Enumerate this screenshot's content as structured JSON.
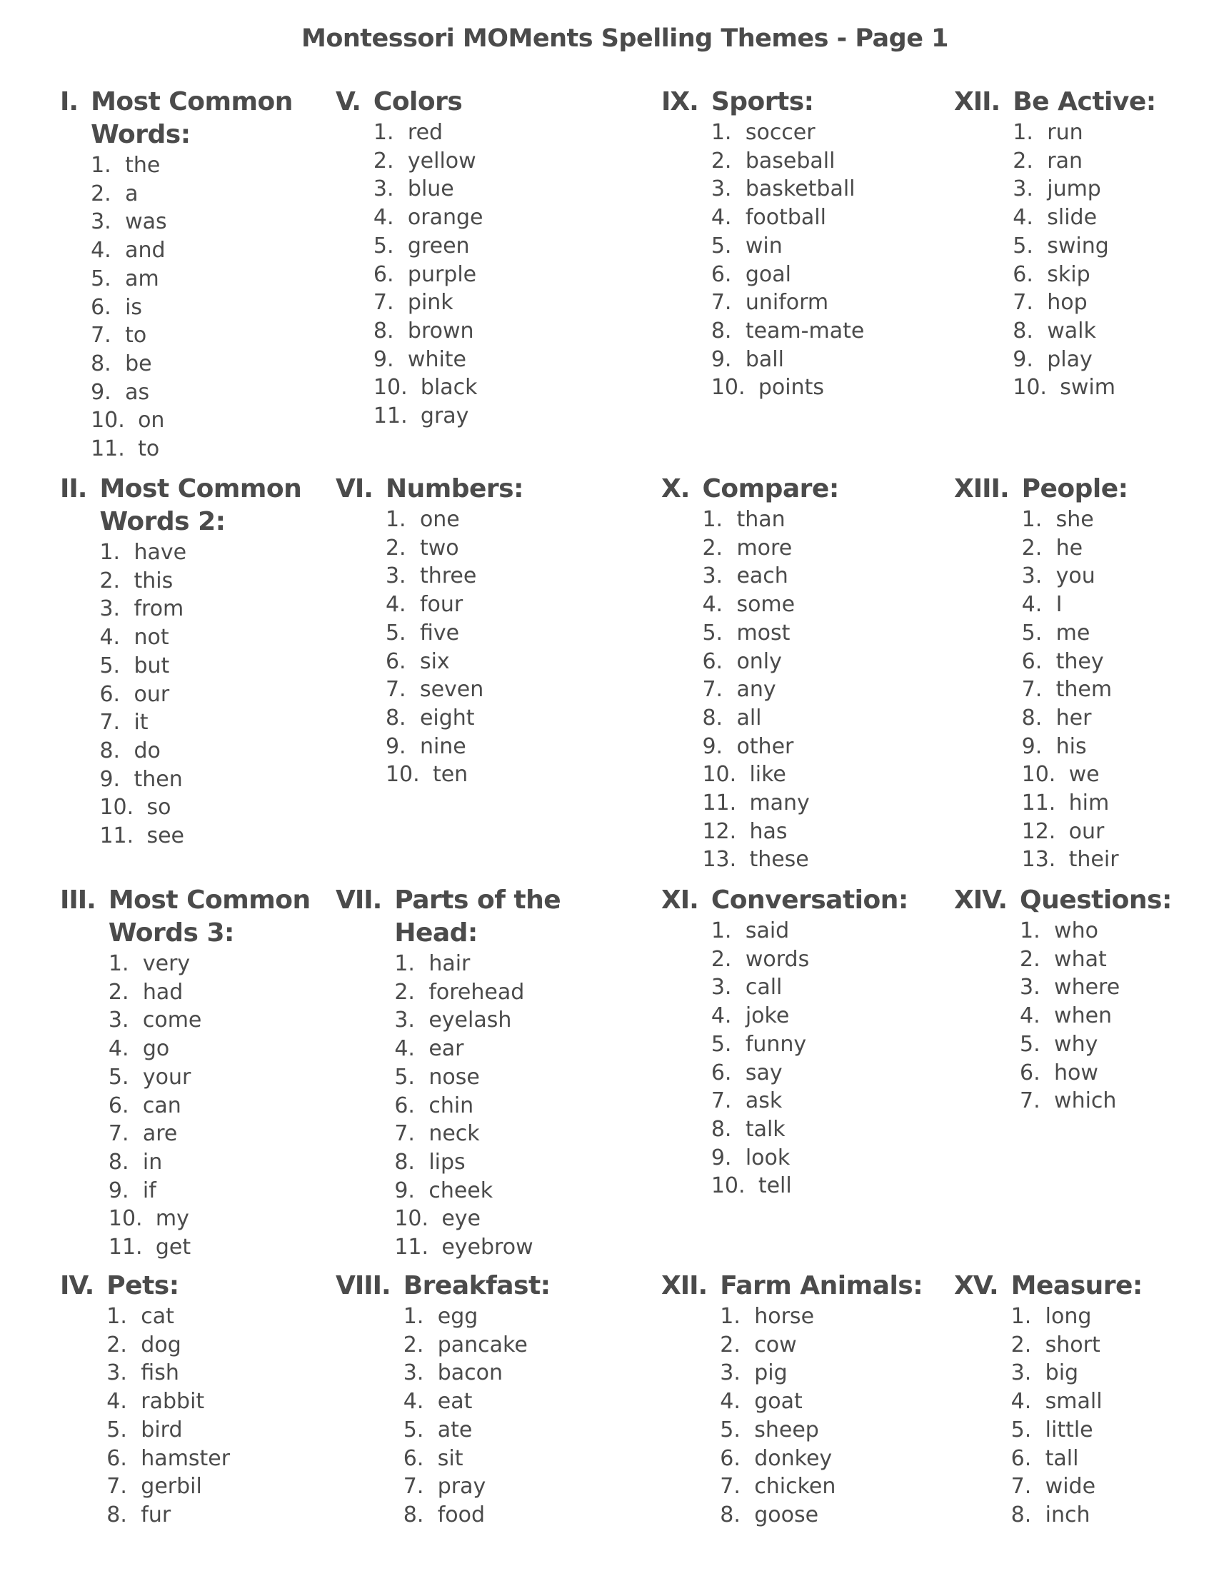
{
  "title": "Montessori MOMents Spelling Themes - Page 1",
  "text_color": "#4b4b4b",
  "sections": [
    {
      "numeral": "I.",
      "title": "Most Common Words:",
      "items": [
        "the",
        "a",
        "was",
        "and",
        "am",
        "is",
        "to",
        "be",
        "as",
        "on",
        "to"
      ]
    },
    {
      "numeral": "II.",
      "title": "Most Common Words 2:",
      "items": [
        "have",
        "this",
        "from",
        "not",
        "but",
        "our",
        "it",
        "do",
        "then",
        "so",
        "see"
      ]
    },
    {
      "numeral": "III.",
      "title": "Most Common Words 3:",
      "items": [
        "very",
        "had",
        "come",
        "go",
        "your",
        "can",
        "are",
        "in",
        "if",
        "my",
        "get"
      ]
    },
    {
      "numeral": "IV.",
      "title": "Pets:",
      "items": [
        "cat",
        "dog",
        "fish",
        "rabbit",
        "bird",
        "hamster",
        "gerbil",
        "fur"
      ]
    },
    {
      "numeral": "V.",
      "title": "Colors",
      "items": [
        "red",
        "yellow",
        "blue",
        "orange",
        "green",
        "purple",
        "pink",
        "brown",
        "white",
        "black",
        "gray"
      ]
    },
    {
      "numeral": "VI.",
      "title": "Numbers:",
      "items": [
        "one",
        "two",
        "three",
        "four",
        "five",
        "six",
        "seven",
        "eight",
        "nine",
        "ten"
      ]
    },
    {
      "numeral": "VII.",
      "title": "Parts of the Head:",
      "items": [
        "hair",
        "forehead",
        "eyelash",
        "ear",
        "nose",
        "chin",
        "neck",
        "lips",
        "cheek",
        "eye",
        "eyebrow"
      ]
    },
    {
      "numeral": "VIII.",
      "title": "Breakfast:",
      "items": [
        "egg",
        "pancake",
        "bacon",
        "eat",
        "ate",
        "sit",
        "pray",
        "food"
      ]
    },
    {
      "numeral": "IX.",
      "title": "Sports:",
      "items": [
        "soccer",
        "baseball",
        "basketball",
        "football",
        "win",
        "goal",
        "uniform",
        "team-mate",
        "ball",
        "points"
      ]
    },
    {
      "numeral": "X.",
      "title": "Compare:",
      "items": [
        "than",
        "more",
        "each",
        "some",
        "most",
        "only",
        "any",
        "all",
        "other",
        "like",
        "many",
        "has",
        "these"
      ]
    },
    {
      "numeral": "XI.",
      "title": "Conversation:",
      "items": [
        "said",
        "words",
        "call",
        "joke",
        "funny",
        "say",
        "ask",
        "talk",
        "look",
        "tell"
      ]
    },
    {
      "numeral": "XII.",
      "title": "Farm Animals:",
      "items": [
        "horse",
        "cow",
        "pig",
        "goat",
        "sheep",
        "donkey",
        "chicken",
        "goose"
      ]
    },
    {
      "numeral": "XII.",
      "title": "Be Active:",
      "items": [
        "run",
        "ran",
        "jump",
        "slide",
        "swing",
        "skip",
        "hop",
        "walk",
        "play",
        "swim"
      ]
    },
    {
      "numeral": "XIII.",
      "title": "People:",
      "items": [
        "she",
        "he",
        "you",
        "I",
        "me",
        "they",
        "them",
        "her",
        "his",
        "we",
        "him",
        "our",
        "their"
      ]
    },
    {
      "numeral": "XIV.",
      "title": "Questions:",
      "items": [
        "who",
        "what",
        "where",
        "when",
        "why",
        "how",
        "which"
      ]
    },
    {
      "numeral": "XV.",
      "title": "Measure:",
      "items": [
        "long",
        "short",
        "big",
        "small",
        "little",
        "tall",
        "wide",
        "inch"
      ]
    }
  ]
}
